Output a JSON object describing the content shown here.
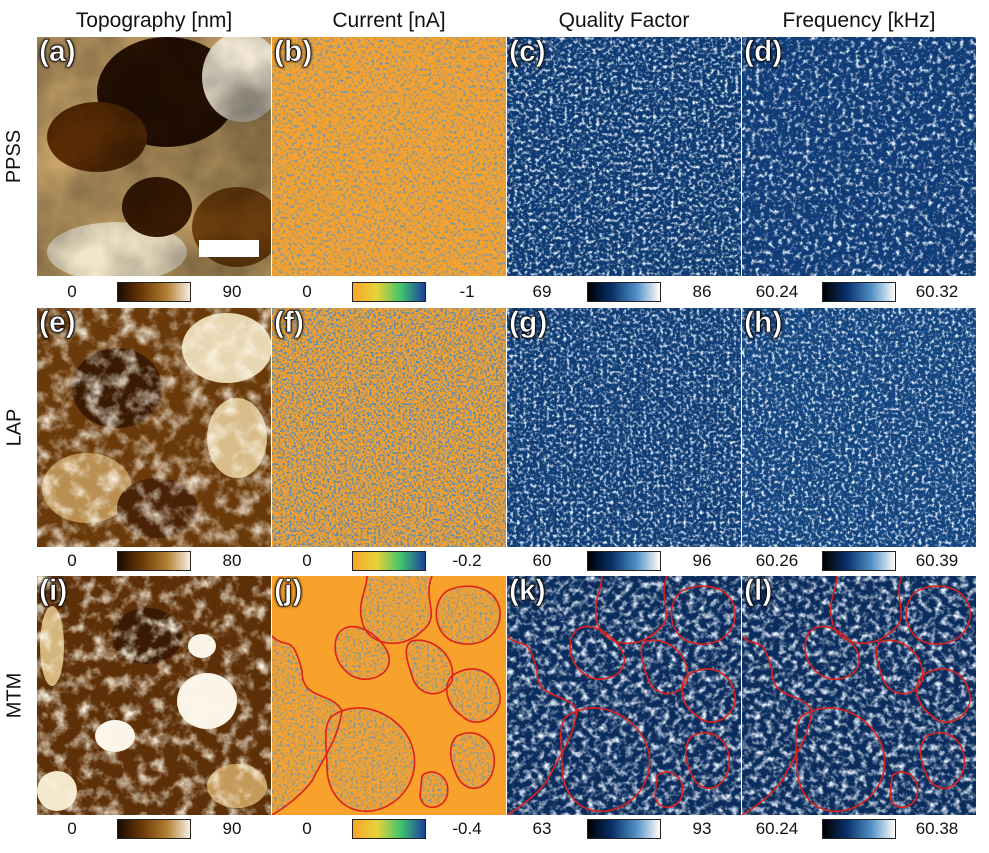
{
  "columns": [
    {
      "title": "Topography [nm]"
    },
    {
      "title": "Current [nA]"
    },
    {
      "title": "Quality Factor"
    },
    {
      "title": "Frequency [kHz]"
    }
  ],
  "rows": [
    {
      "label": "PPSS",
      "panels": [
        "(a)",
        "(b)",
        "(c)",
        "(d)"
      ],
      "colorbars": [
        [
          "0",
          "90"
        ],
        [
          "0",
          "-1"
        ],
        [
          "69",
          "86"
        ],
        [
          "60.24",
          "60.32"
        ]
      ]
    },
    {
      "label": "LAP",
      "panels": [
        "(e)",
        "(f)",
        "(g)",
        "(h)"
      ],
      "colorbars": [
        [
          "0",
          "80"
        ],
        [
          "0",
          "-0.2"
        ],
        [
          "60",
          "96"
        ],
        [
          "60.26",
          "60.39"
        ]
      ]
    },
    {
      "label": "MTM",
      "panels": [
        "(i)",
        "(j)",
        "(k)",
        "(l)"
      ],
      "colorbars": [
        [
          "0",
          "90"
        ],
        [
          "0",
          "-0.4"
        ],
        [
          "63",
          "93"
        ],
        [
          "60.24",
          "60.38"
        ]
      ]
    }
  ],
  "colors": {
    "topography_gradient": [
      "#1a0a00",
      "#6b3a08",
      "#b07a30",
      "#f7efe0"
    ],
    "current_gradient": [
      "#f7a52a",
      "#e8d23a",
      "#3fc46e",
      "#1c3f9c"
    ],
    "blue_gradient": [
      "#000000",
      "#08306b",
      "#4f8fc4",
      "#ffffff"
    ],
    "current_background": "#f8a12b",
    "contour": "#e0201b"
  }
}
